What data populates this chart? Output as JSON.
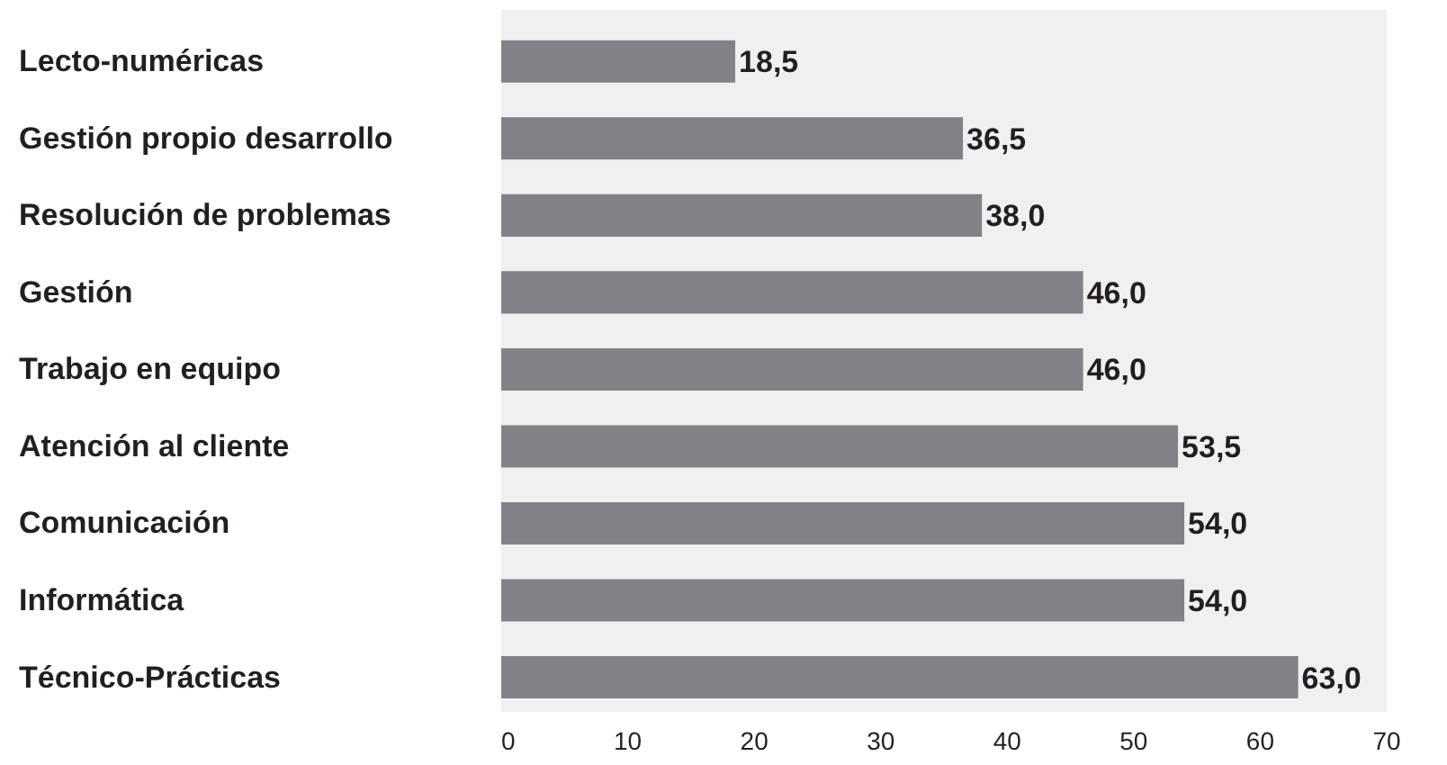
{
  "chart_data": {
    "type": "bar",
    "orientation": "horizontal",
    "categories": [
      "Lecto-numéricas",
      "Gestión propio desarrollo",
      "Resolución de problemas",
      "Gestión",
      "Trabajo en equipo",
      "Atención al cliente",
      "Comunicación",
      "Informática",
      "Técnico-Prácticas"
    ],
    "values": [
      18.5,
      36.5,
      38.0,
      46.0,
      46.0,
      53.5,
      54.0,
      54.0,
      63.0
    ],
    "value_labels": [
      "18,5",
      "36,5",
      "38,0",
      "46,0",
      "46,0",
      "53,5",
      "54,0",
      "54,0",
      "63,0"
    ],
    "color": "#808285",
    "xlim": [
      0,
      70
    ],
    "xticks": [
      0,
      10,
      20,
      30,
      40,
      50,
      60,
      70
    ],
    "grid": false
  }
}
